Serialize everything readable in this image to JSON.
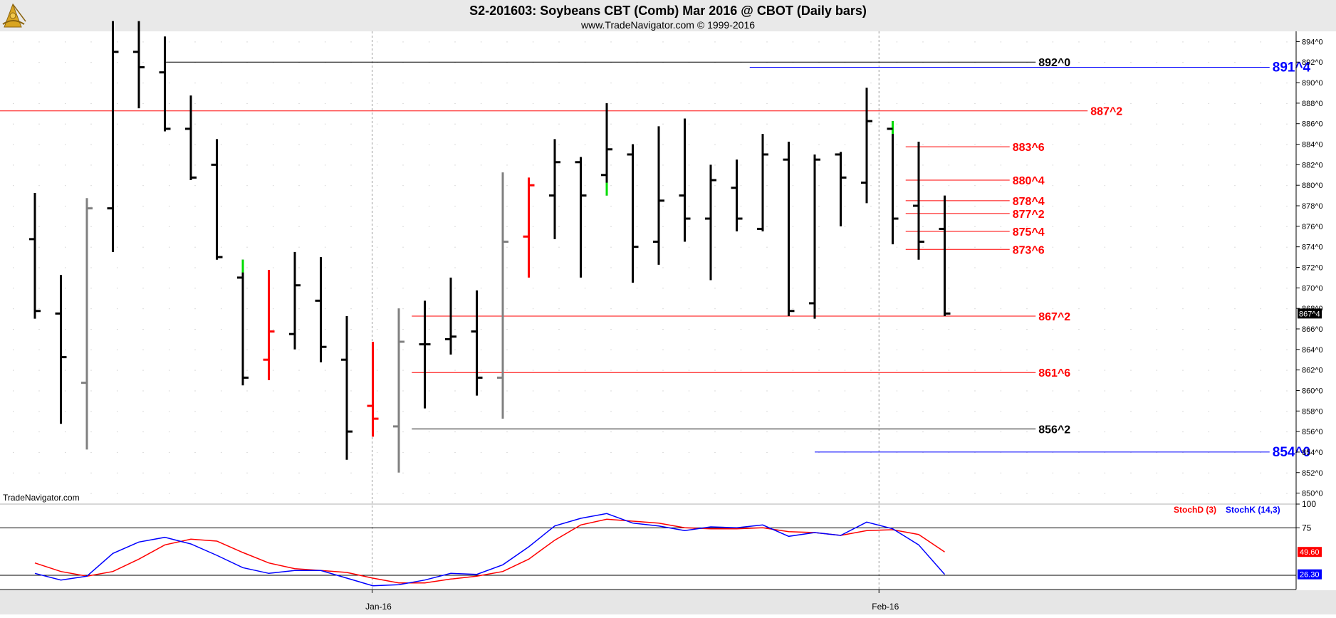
{
  "header": {
    "title": "S2-201603:  Soybeans CBT (Comb) Mar 2016 @ CBOT  (Daily bars)",
    "subtitle": "www.TradeNavigator.com © 1999-2016",
    "watermark": "TradeNavigator.com",
    "logo_icon": "sextant-logo-icon"
  },
  "chart_data": [
    {
      "type": "ohlc",
      "title": "S2-201603:  Soybeans CBT (Comb) Mar 2016 @ CBOT  (Daily bars)",
      "ylim": [
        849,
        895
      ],
      "y_ticks": [
        "850^0",
        "852^0",
        "854^0",
        "856^0",
        "858^0",
        "860^0",
        "862^0",
        "864^0",
        "866^0",
        "868^0",
        "870^0",
        "872^0",
        "874^0",
        "876^0",
        "878^0",
        "880^0",
        "882^0",
        "884^0",
        "886^0",
        "888^0",
        "890^0",
        "892^0",
        "894^0"
      ],
      "x_ticks": [
        {
          "label": "Jan-16",
          "bar": 13
        },
        {
          "label": "Feb-16",
          "bar": 32.5
        }
      ],
      "current_price_label": "867^4",
      "bars": [
        {
          "o": 874.75,
          "h": 879.25,
          "l": 867.0,
          "c": 867.75,
          "color": "black"
        },
        {
          "o": 867.5,
          "h": 871.25,
          "l": 856.75,
          "c": 863.25,
          "color": "black"
        },
        {
          "o": 860.75,
          "h": 878.75,
          "l": 854.25,
          "c": 877.75,
          "color": "gray"
        },
        {
          "o": 877.75,
          "h": 896.0,
          "l": 873.5,
          "c": 893.0,
          "color": "black"
        },
        {
          "o": 893.0,
          "h": 896.0,
          "l": 887.5,
          "c": 891.5,
          "color": "black"
        },
        {
          "o": 891.0,
          "h": 894.5,
          "l": 885.25,
          "c": 885.5,
          "color": "black"
        },
        {
          "o": 885.5,
          "h": 888.75,
          "l": 880.5,
          "c": 880.75,
          "color": "black"
        },
        {
          "o": 882.0,
          "h": 884.5,
          "l": 872.75,
          "c": 873.0,
          "color": "black"
        },
        {
          "o": 871.0,
          "h": 872.75,
          "l": 860.5,
          "c": 861.25,
          "color": "black",
          "high_color": "green"
        },
        {
          "o": 863.0,
          "h": 871.75,
          "l": 861.0,
          "c": 865.75,
          "color": "red"
        },
        {
          "o": 865.5,
          "h": 873.5,
          "l": 864.0,
          "c": 870.25,
          "color": "black"
        },
        {
          "o": 868.75,
          "h": 873.0,
          "l": 862.75,
          "c": 864.25,
          "color": "black"
        },
        {
          "o": 863.0,
          "h": 867.25,
          "l": 853.25,
          "c": 856.0,
          "color": "black"
        },
        {
          "o": 858.5,
          "h": 864.75,
          "l": 855.5,
          "c": 857.25,
          "color": "red"
        },
        {
          "o": 856.5,
          "h": 868.0,
          "l": 852.0,
          "c": 864.75,
          "color": "gray"
        },
        {
          "o": 864.5,
          "h": 868.75,
          "l": 858.25,
          "c": 864.5,
          "color": "black"
        },
        {
          "o": 865.0,
          "h": 871.0,
          "l": 863.5,
          "c": 865.25,
          "color": "black"
        },
        {
          "o": 865.75,
          "h": 869.75,
          "l": 859.5,
          "c": 861.25,
          "color": "black"
        },
        {
          "o": 861.25,
          "h": 881.25,
          "l": 857.25,
          "c": 874.5,
          "color": "gray"
        },
        {
          "o": 875.0,
          "h": 880.75,
          "l": 871.0,
          "c": 880.0,
          "color": "red"
        },
        {
          "o": 879.0,
          "h": 884.5,
          "l": 874.75,
          "c": 882.25,
          "color": "black"
        },
        {
          "o": 882.25,
          "h": 882.75,
          "l": 871.0,
          "c": 879.0,
          "color": "black"
        },
        {
          "o": 881.0,
          "h": 888.0,
          "l": 879.0,
          "c": 883.5,
          "color": "black",
          "low_color": "green"
        },
        {
          "o": 883.0,
          "h": 884.0,
          "l": 870.5,
          "c": 874.0,
          "color": "black"
        },
        {
          "o": 874.5,
          "h": 885.75,
          "l": 872.25,
          "c": 878.5,
          "color": "black"
        },
        {
          "o": 879.0,
          "h": 886.5,
          "l": 874.5,
          "c": 876.75,
          "color": "black"
        },
        {
          "o": 876.75,
          "h": 882.0,
          "l": 870.75,
          "c": 880.5,
          "color": "black"
        },
        {
          "o": 879.75,
          "h": 882.5,
          "l": 875.5,
          "c": 876.75,
          "color": "black"
        },
        {
          "o": 875.75,
          "h": 885.0,
          "l": 875.5,
          "c": 883.0,
          "color": "black"
        },
        {
          "o": 882.5,
          "h": 884.25,
          "l": 867.25,
          "c": 867.75,
          "color": "black"
        },
        {
          "o": 868.5,
          "h": 883.0,
          "l": 867.0,
          "c": 882.5,
          "color": "black"
        },
        {
          "o": 883.0,
          "h": 883.25,
          "l": 876.0,
          "c": 880.75,
          "color": "black"
        },
        {
          "o": 880.25,
          "h": 889.5,
          "l": 878.25,
          "c": 886.25,
          "color": "black"
        },
        {
          "o": 885.5,
          "h": 886.25,
          "l": 874.25,
          "c": 876.75,
          "color": "black",
          "high_color": "green"
        },
        {
          "o": 878.0,
          "h": 884.25,
          "l": 872.75,
          "c": 874.5,
          "color": "black"
        },
        {
          "o": 875.75,
          "h": 879.0,
          "l": 867.25,
          "c": 867.5,
          "color": "black"
        }
      ],
      "levels": [
        {
          "label": "892^0",
          "value": 892.0,
          "color": "#000000",
          "from_bar": 5,
          "to_bar": 38.5,
          "bold": false
        },
        {
          "label": "891^4",
          "value": 891.5,
          "color": "#0000ff",
          "from_bar": 27.5,
          "to_bar": 47.5,
          "bold": true
        },
        {
          "label": "887^2",
          "value": 887.25,
          "color": "#ff0000",
          "from_bar": -1.4,
          "to_bar": 40.5,
          "bold": false
        },
        {
          "label": "883^6",
          "value": 883.75,
          "color": "#ff0000",
          "from_bar": 33.5,
          "to_bar": 37.5,
          "bold": false
        },
        {
          "label": "880^4",
          "value": 880.5,
          "color": "#ff0000",
          "from_bar": 33.5,
          "to_bar": 37.5,
          "bold": false
        },
        {
          "label": "878^4",
          "value": 878.5,
          "color": "#ff0000",
          "from_bar": 33.5,
          "to_bar": 37.5,
          "bold": false
        },
        {
          "label": "877^2",
          "value": 877.25,
          "color": "#ff0000",
          "from_bar": 33.5,
          "to_bar": 37.5,
          "bold": false
        },
        {
          "label": "875^4",
          "value": 875.5,
          "color": "#ff0000",
          "from_bar": 33.5,
          "to_bar": 37.5,
          "bold": false
        },
        {
          "label": "873^6",
          "value": 873.75,
          "color": "#ff0000",
          "from_bar": 33.5,
          "to_bar": 37.5,
          "bold": false
        },
        {
          "label": "867^2",
          "value": 867.25,
          "color": "#ff0000",
          "from_bar": 14.5,
          "to_bar": 38.5,
          "bold": false
        },
        {
          "label": "861^6",
          "value": 861.75,
          "color": "#ff0000",
          "from_bar": 14.5,
          "to_bar": 38.5,
          "bold": false
        },
        {
          "label": "856^2",
          "value": 856.25,
          "color": "#000000",
          "from_bar": 14.5,
          "to_bar": 38.5,
          "bold": false
        },
        {
          "label": "854^0",
          "value": 854.0,
          "color": "#0000ff",
          "from_bar": 30,
          "to_bar": 47.5,
          "bold": true
        }
      ]
    },
    {
      "type": "line",
      "ylim": [
        10,
        100
      ],
      "y_ticks": [
        "75",
        "100"
      ],
      "reference_lines": [
        25,
        75
      ],
      "legend": [
        {
          "label": "StochD (3)",
          "color": "#ff0000"
        },
        {
          "label": "StochK (14,3)",
          "color": "#0000ff"
        }
      ],
      "series": [
        {
          "name": "StochK (14,3)",
          "color": "#0000ff",
          "last_label": "26.30",
          "values": [
            27,
            20,
            24,
            48,
            60,
            65,
            58,
            46,
            33,
            27,
            30,
            30,
            22,
            14,
            15,
            20,
            27,
            26,
            36,
            55,
            77,
            85,
            90,
            80,
            77,
            72,
            76,
            75,
            78,
            66,
            70,
            67,
            81,
            74,
            57,
            26
          ]
        },
        {
          "name": "StochD (3)",
          "color": "#ff0000",
          "last_label": "49.60",
          "values": [
            38,
            29,
            24,
            29,
            42,
            57,
            63,
            61,
            49,
            38,
            32,
            30,
            28,
            22,
            17,
            17,
            21,
            24,
            29,
            42,
            62,
            78,
            84,
            82,
            80,
            75,
            74,
            74,
            75,
            71,
            70,
            67,
            72,
            73,
            68,
            49.6
          ]
        }
      ]
    }
  ]
}
